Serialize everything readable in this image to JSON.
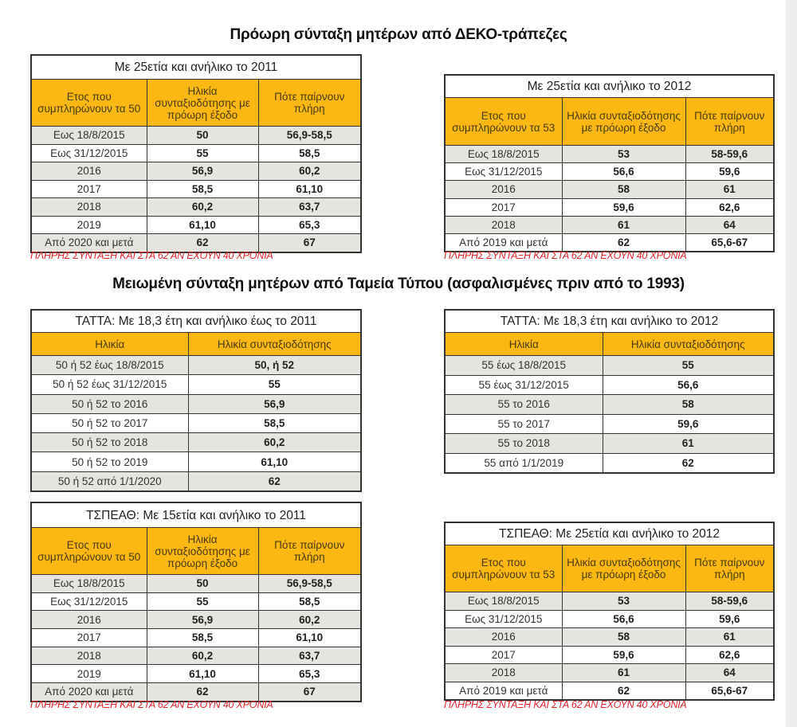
{
  "titles": {
    "deko": "Πρόωρη σύνταξη μητέρων από ΔΕΚΟ-τράπεζες",
    "press": "Μειωμένη σύνταξη μητέρων από Ταμεία Τύπου (ασφαλισμένες πριν από το 1993)"
  },
  "tables": [
    {
      "id": "deko-2011",
      "caption": "Με 25ετία και ανήλικο το 2011",
      "headers": [
        "Ετος που συμπληρώνουν τα 50",
        "Ηλικία συνταξιοδότησης με πρόωρη έξοδο",
        "Πότε παίρνουν πλήρη"
      ],
      "rows": [
        [
          "Εως 18/8/2015",
          "50",
          "56,9-58,5"
        ],
        [
          "Εως 31/12/2015",
          "55",
          "58,5"
        ],
        [
          "2016",
          "56,9",
          "60,2"
        ],
        [
          "2017",
          "58,5",
          "61,10"
        ],
        [
          "2018",
          "60,2",
          "63,7"
        ],
        [
          "2019",
          "61,10",
          "65,3"
        ],
        [
          "Από 2020 και μετά",
          "62",
          "67"
        ]
      ],
      "note": "ΠΛΗΡΗΣ ΣΥΝΤΑΞΗ ΚΑΙ ΣΤΑ 62 ΑΝ ΕΧΟΥΝ 40 ΧΡΟΝΙΑ"
    },
    {
      "id": "deko-2012",
      "caption": "Με 25ετία και ανήλικο το 2012",
      "headers": [
        "Ετος που συμπληρώνουν τα 53",
        "Ηλικία συνταξιοδότησης με πρόωρη έξοδο",
        "Πότε παίρνουν πλήρη"
      ],
      "rows": [
        [
          "Εως 18/8/2015",
          "53",
          "58-59,6"
        ],
        [
          "Εως 31/12/2015",
          "56,6",
          "59,6"
        ],
        [
          "2016",
          "58",
          "61"
        ],
        [
          "2017",
          "59,6",
          "62,6"
        ],
        [
          "2018",
          "61",
          "64"
        ],
        [
          "Από 2019 και μετά",
          "62",
          "65,6-67"
        ]
      ],
      "note": "ΠΛΗΡΗΣ ΣΥΝΤΑΞΗ ΚΑΙ ΣΤΑ 62 ΑΝ ΕΧΟΥΝ 40 ΧΡΟΝΙΑ"
    },
    {
      "id": "tatta-2011",
      "caption": "ΤΑΤΤΑ: Με 18,3 έτη και ανήλικο έως το 2011",
      "headers": [
        "Ηλικία",
        "Ηλικία συνταξιοδότησης"
      ],
      "rows": [
        [
          "50 ή 52 έως 18/8/2015",
          "50, ή 52"
        ],
        [
          "50 ή 52 έως 31/12/2015",
          "55"
        ],
        [
          "50 ή 52 το 2016",
          "56,9"
        ],
        [
          "50 ή 52 το 2017",
          "58,5"
        ],
        [
          "50 ή 52 το 2018",
          "60,2"
        ],
        [
          "50 ή 52 το 2019",
          "61,10"
        ],
        [
          "50 ή 52 από 1/1/2020",
          "62"
        ]
      ]
    },
    {
      "id": "tatta-2012",
      "caption": "ΤΑΤΤΑ: Με 18,3 έτη και ανήλικο το 2012",
      "headers": [
        "Ηλικία",
        "Ηλικία συνταξιοδότησης"
      ],
      "rows": [
        [
          "55 έως 18/8/2015",
          "55"
        ],
        [
          "55 έως 31/12/2015",
          "56,6"
        ],
        [
          "55 το 2016",
          "58"
        ],
        [
          "55 το 2017",
          "59,6"
        ],
        [
          "55 το 2018",
          "61"
        ],
        [
          "55 από 1/1/2019",
          "62"
        ]
      ]
    },
    {
      "id": "tspeath-2011",
      "caption": "ΤΣΠΕΑΘ: Με 15ετία και ανήλικο το 2011",
      "headers": [
        "Ετος που συμπληρώνουν τα 50",
        "Ηλικία συνταξιοδότησης με πρόωρη έξοδο",
        "Πότε παίρνουν πλήρη"
      ],
      "rows": [
        [
          "Εως 18/8/2015",
          "50",
          "56,9-58,5"
        ],
        [
          "Εως 31/12/2015",
          "55",
          "58,5"
        ],
        [
          "2016",
          "56,9",
          "60,2"
        ],
        [
          "2017",
          "58,5",
          "61,10"
        ],
        [
          "2018",
          "60,2",
          "63,7"
        ],
        [
          "2019",
          "61,10",
          "65,3"
        ],
        [
          "Από 2020 και μετά",
          "62",
          "67"
        ]
      ],
      "note": "ΠΛΗΡΗΣ ΣΥΝΤΑΞΗ ΚΑΙ ΣΤΑ 62 ΑΝ ΕΧΟΥΝ 40 ΧΡΟΝΙΑ"
    },
    {
      "id": "tspeath-2012",
      "caption": "ΤΣΠΕΑΘ: Με 25ετία και ανήλικο το 2012",
      "headers": [
        "Ετος που συμπληρώνουν τα 53",
        "Ηλικία συνταξιοδότησης με πρόωρη έξοδο",
        "Πότε παίρνουν πλήρη"
      ],
      "rows": [
        [
          "Εως 18/8/2015",
          "53",
          "58-59,6"
        ],
        [
          "Εως 31/12/2015",
          "56,6",
          "59,6"
        ],
        [
          "2016",
          "58",
          "61"
        ],
        [
          "2017",
          "59,6",
          "62,6"
        ],
        [
          "2018",
          "61",
          "64"
        ],
        [
          "Από 2019 και μετά",
          "62",
          "65,6-67"
        ]
      ],
      "note": "ΠΛΗΡΗΣ ΣΥΝΤΑΞΗ ΚΑΙ ΣΤΑ 62 ΑΝ ΕΧΟΥΝ 40 ΧΡΟΝΙΑ"
    }
  ]
}
